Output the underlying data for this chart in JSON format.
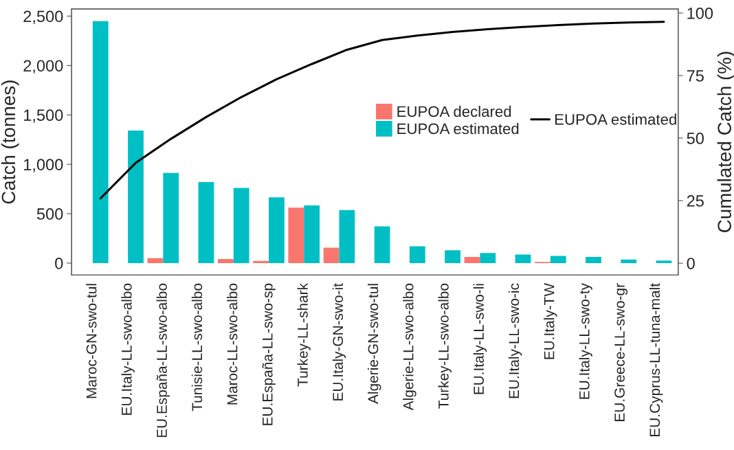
{
  "chart_data": {
    "type": "bar",
    "ylabel": "Catch (tonnes)",
    "y2label": "Cumulated Catch (%)",
    "categories": [
      "Maroc-GN-swo-tul",
      "EU.Italy-LL-swo-albo",
      "EU.España-LL-swo-albo",
      "Tunisie-LL-swo-albo",
      "Maroc-LL-swo-albo",
      "EU.España-LL-swo-sp",
      "Turkey-LL-shark",
      "EU.Italy-GN-swo-it",
      "Algerie-GN-swo-tul",
      "Algerie-LL-swo-albo",
      "Turkey-LL-swo-albo",
      "EU.Italy-LL-swo-li",
      "EU.Italy-LL-swo-ic",
      "EU.Italy-TW",
      "EU.Italy-LL-swo-ty",
      "EU.Greece-LL-swo-gr",
      "EU.Cyprus-LL-tuna-malt"
    ],
    "series": [
      {
        "name": "EUPOA declared",
        "color": "#f8766d",
        "values": [
          null,
          null,
          50,
          null,
          41,
          22,
          561,
          156,
          null,
          null,
          null,
          62,
          null,
          12,
          null,
          null,
          null
        ]
      },
      {
        "name": "EUPOA estimated",
        "color": "#00bfc4",
        "values": [
          2450,
          1341,
          912,
          821,
          761,
          665,
          583,
          537,
          372,
          170,
          130,
          103,
          86,
          72,
          62,
          36,
          26
        ]
      },
      {
        "name": "EUPOA estimated",
        "type": "line",
        "axis": "y2",
        "color": "#000000",
        "values": [
          25.9,
          40.1,
          49.7,
          58.4,
          66.4,
          73.5,
          79.6,
          85.3,
          89.2,
          91.0,
          92.4,
          93.5,
          94.4,
          95.2,
          95.8,
          96.2,
          96.5
        ]
      }
    ],
    "ylim": [
      -120,
      2572
    ],
    "yticks": [
      0,
      500,
      {
        "value": 1000,
        "label": "1,000"
      },
      {
        "value": 1500,
        "label": "1,500"
      },
      {
        "value": 2000,
        "label": "2,000"
      },
      {
        "value": 2500,
        "label": "2,500"
      }
    ],
    "y2lim": [
      -4.7,
      101.6
    ],
    "y2ticks": [
      0,
      25,
      50,
      75,
      100
    ],
    "grid": false,
    "legend": "right",
    "marker": "none",
    "line_style": "solid"
  }
}
